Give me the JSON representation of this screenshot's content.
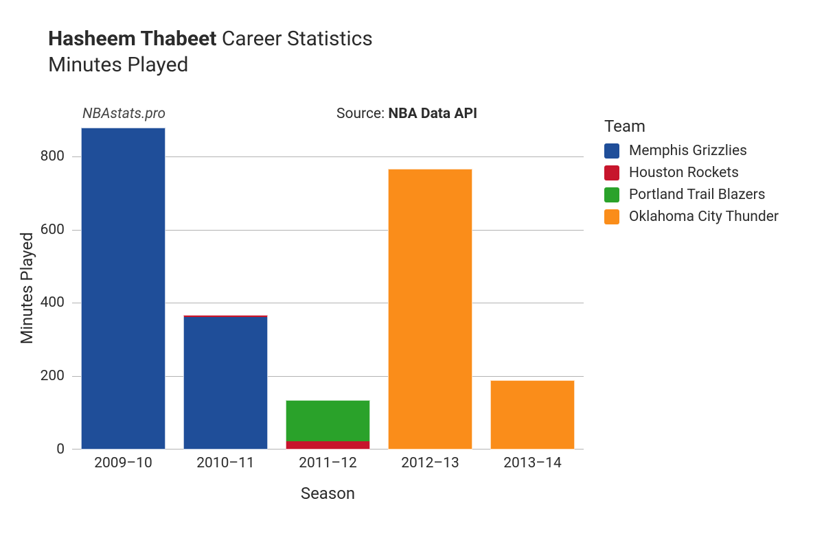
{
  "title": {
    "bold": "Hasheem Thabeet",
    "rest": "Career Statistics",
    "subtitle": "Minutes Played",
    "fontsize": 30,
    "color": "#2b2b2b"
  },
  "watermark": {
    "text": "NBAstats.pro",
    "fontsize": 21,
    "italic": true
  },
  "source": {
    "prefix": "Source: ",
    "bold": "NBA Data API",
    "fontsize": 21
  },
  "chart": {
    "type": "stacked-bar",
    "background_color": "#ffffff",
    "grid_color": "#b3b3b3",
    "bar_width_ratio": 0.82,
    "xlabel": "Season",
    "ylabel": "Minutes Played",
    "axis_title_fontsize": 24,
    "tick_fontsize": 21,
    "ylim": [
      0,
      880
    ],
    "yticks": [
      0,
      200,
      400,
      600,
      800
    ],
    "categories": [
      "2009–10",
      "2010–11",
      "2011–12",
      "2012–13",
      "2013–14"
    ],
    "series": [
      {
        "key": "memphis",
        "label": "Memphis Grizzlies",
        "color": "#1f4e99"
      },
      {
        "key": "houston",
        "label": "Houston Rockets",
        "color": "#c7152c"
      },
      {
        "key": "portland",
        "label": "Portland Trail Blazers",
        "color": "#2aa22a"
      },
      {
        "key": "okc",
        "label": "Oklahoma City Thunder",
        "color": "#fa8d1a"
      }
    ],
    "data": {
      "memphis": [
        878,
        362,
        0,
        0,
        0
      ],
      "houston": [
        0,
        5,
        22,
        0,
        0
      ],
      "portland": [
        0,
        0,
        112,
        0,
        0
      ],
      "okc": [
        0,
        0,
        0,
        765,
        190
      ]
    }
  },
  "legend": {
    "title": "Team",
    "title_fontsize": 24,
    "label_fontsize": 21
  }
}
